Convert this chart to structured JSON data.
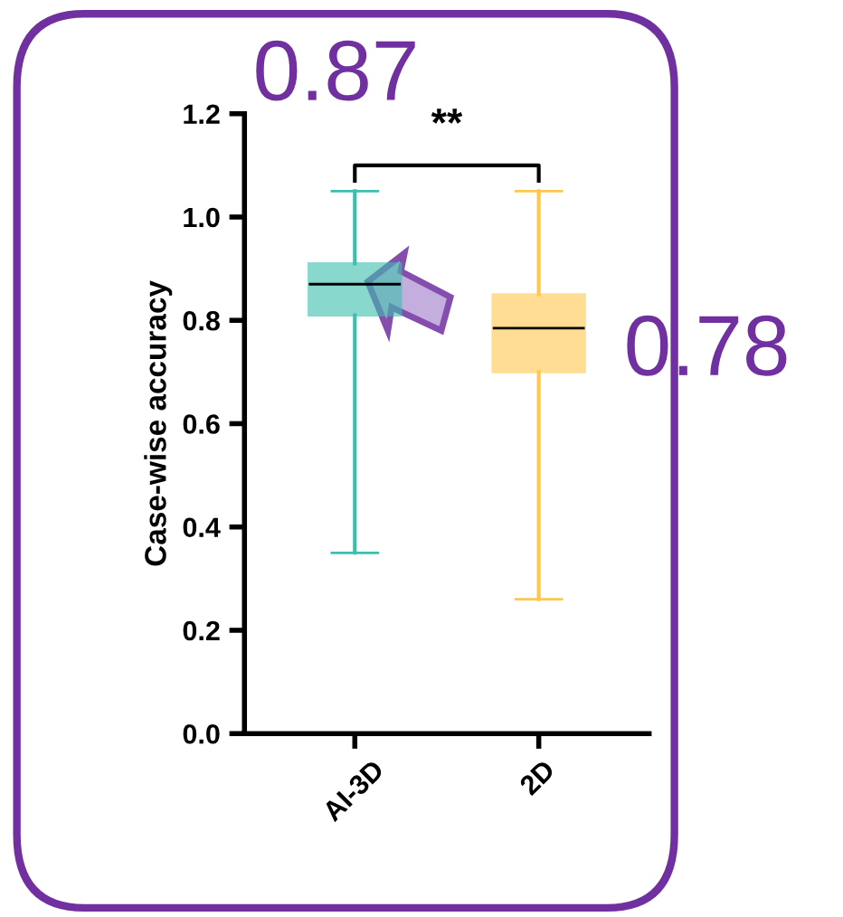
{
  "chart_data": {
    "type": "box",
    "ylabel": "Case-wise accuracy",
    "categories": [
      "AI-3D",
      "2D"
    ],
    "boxes": [
      {
        "low": 0.35,
        "q1": 0.81,
        "median": 0.87,
        "q3": 0.91,
        "high": 1.05
      },
      {
        "low": 0.26,
        "q1": 0.7,
        "median": 0.785,
        "q3": 0.85,
        "high": 1.05
      }
    ],
    "colors": [
      "#3cbfae",
      "#ffc84a"
    ],
    "ylim": [
      0,
      1.2
    ],
    "yticks": [
      {
        "value": 0,
        "label": "0.0"
      },
      {
        "value": 0.2,
        "label": "0.2"
      },
      {
        "value": 0.4,
        "label": "0.4"
      },
      {
        "value": 0.6,
        "label": "0.6"
      },
      {
        "value": 0.8,
        "label": "0.8"
      },
      {
        "value": 1.0,
        "label": "1.0"
      },
      {
        "value": 1.2,
        "label": "1.2"
      }
    ],
    "grid": false,
    "annotations": [
      "**",
      "0.87",
      "0.78"
    ]
  }
}
